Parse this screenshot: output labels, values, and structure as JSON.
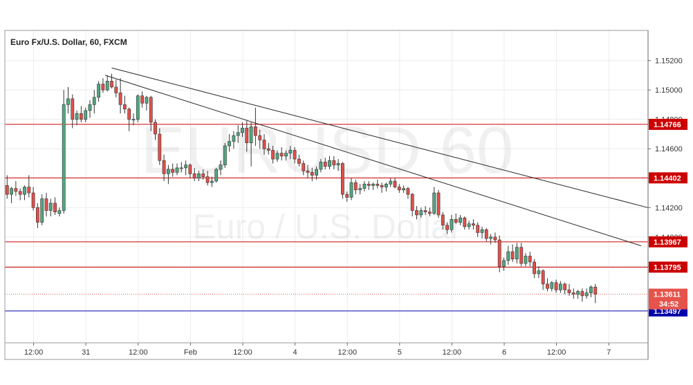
{
  "chart_data": {
    "type": "candlestick",
    "title": "Euro Fx/U.S. Dollar, 60, FXCM",
    "watermark": {
      "symbol": "EURUSD",
      "interval": "60",
      "description": "Euro / U.S. Dollar"
    },
    "y_axis": {
      "ylim": [
        1.1328,
        1.15405
      ],
      "ticks": [
        "1.15200",
        "1.15000",
        "1.14800",
        "1.14600",
        "1.14400",
        "1.14200",
        "1.14000",
        "1.13800"
      ],
      "grid": true
    },
    "x_axis": {
      "ticks": [
        {
          "label": "12:00",
          "bar": 6
        },
        {
          "label": "31",
          "bar": 18
        },
        {
          "label": "12:00",
          "bar": 30
        },
        {
          "label": "Feb",
          "bar": 42
        },
        {
          "label": "12:00",
          "bar": 54
        },
        {
          "label": "4",
          "bar": 66
        },
        {
          "label": "12:00",
          "bar": 78
        },
        {
          "label": "5",
          "bar": 90
        },
        {
          "label": "12:00",
          "bar": 102
        },
        {
          "label": "6",
          "bar": 114
        },
        {
          "label": "12:00",
          "bar": 126
        },
        {
          "label": "7",
          "bar": 138
        }
      ],
      "grid": true
    },
    "horizontal_lines": [
      {
        "value": 1.14766,
        "label": "1.14766",
        "color": "#cc0000"
      },
      {
        "value": 1.14402,
        "label": "1.14402",
        "color": "#cc0000"
      },
      {
        "value": 1.13967,
        "label": "1.13967",
        "color": "#cc0000"
      },
      {
        "value": 1.13795,
        "label": "1.13795",
        "color": "#cc0000"
      },
      {
        "value": 1.13497,
        "label": "1.13497",
        "color": "#0000aa"
      }
    ],
    "current_price": {
      "value": 1.13611,
      "label": "1.13611",
      "countdown": "34:52",
      "color": "#e5534b"
    },
    "trendlines": [
      {
        "x1": 24,
        "y1": 1.1515,
        "x2": 147,
        "y2": 1.142
      },
      {
        "x1": 22.5,
        "y1": 1.151,
        "x2": 145.5,
        "y2": 1.1394
      }
    ],
    "colors": {
      "up": "#53a580",
      "down": "#e0504a",
      "outline": "#333333",
      "grid": "#ececec"
    },
    "candles": [
      [
        1.1435,
        1.1442,
        1.1426,
        1.1429
      ],
      [
        1.1429,
        1.1434,
        1.1423,
        1.1433
      ],
      [
        1.1433,
        1.1438,
        1.1428,
        1.1431
      ],
      [
        1.1431,
        1.1433,
        1.1425,
        1.1429
      ],
      [
        1.1429,
        1.1435,
        1.1425,
        1.1434
      ],
      [
        1.1434,
        1.1442,
        1.1427,
        1.143
      ],
      [
        1.143,
        1.1434,
        1.1418,
        1.142
      ],
      [
        1.142,
        1.1423,
        1.1406,
        1.141
      ],
      [
        1.141,
        1.1429,
        1.1408,
        1.1426
      ],
      [
        1.1426,
        1.143,
        1.1414,
        1.1418
      ],
      [
        1.1418,
        1.1426,
        1.1414,
        1.1423
      ],
      [
        1.1423,
        1.1427,
        1.1415,
        1.1417
      ],
      [
        1.1416,
        1.142,
        1.1414,
        1.1418
      ],
      [
        1.1418,
        1.15,
        1.1416,
        1.149
      ],
      [
        1.149,
        1.1502,
        1.1484,
        1.1494
      ],
      [
        1.1494,
        1.1497,
        1.1474,
        1.148
      ],
      [
        1.148,
        1.1486,
        1.1476,
        1.1484
      ],
      [
        1.1484,
        1.1489,
        1.1478,
        1.148
      ],
      [
        1.148,
        1.1488,
        1.1478,
        1.1486
      ],
      [
        1.1486,
        1.1493,
        1.1481,
        1.149
      ],
      [
        1.149,
        1.15,
        1.1484,
        1.1495
      ],
      [
        1.1495,
        1.1506,
        1.1492,
        1.1504
      ],
      [
        1.1504,
        1.1508,
        1.1498,
        1.15
      ],
      [
        1.15,
        1.151,
        1.1499,
        1.1506
      ],
      [
        1.1506,
        1.1511,
        1.1501,
        1.1502
      ],
      [
        1.1502,
        1.1507,
        1.1495,
        1.1498
      ],
      [
        1.1498,
        1.1508,
        1.1484,
        1.149
      ],
      [
        1.149,
        1.1496,
        1.1484,
        1.1487
      ],
      [
        1.1487,
        1.1488,
        1.1472,
        1.148
      ],
      [
        1.148,
        1.1484,
        1.1476,
        1.148
      ],
      [
        1.148,
        1.1497,
        1.1478,
        1.1496
      ],
      [
        1.1496,
        1.1499,
        1.1488,
        1.1491
      ],
      [
        1.1491,
        1.1496,
        1.1486,
        1.1495
      ],
      [
        1.1495,
        1.1496,
        1.1472,
        1.1478
      ],
      [
        1.1478,
        1.148,
        1.1466,
        1.147
      ],
      [
        1.147,
        1.1474,
        1.1449,
        1.1452
      ],
      [
        1.1452,
        1.1456,
        1.1438,
        1.1443
      ],
      [
        1.1443,
        1.1449,
        1.1436,
        1.1446
      ],
      [
        1.1446,
        1.145,
        1.1441,
        1.1444
      ],
      [
        1.1444,
        1.145,
        1.1442,
        1.1447
      ],
      [
        1.1447,
        1.1451,
        1.1444,
        1.1447
      ],
      [
        1.1447,
        1.1452,
        1.1442,
        1.1449
      ],
      [
        1.1449,
        1.145,
        1.144,
        1.1443
      ],
      [
        1.1443,
        1.1447,
        1.1438,
        1.144
      ],
      [
        1.144,
        1.1445,
        1.1438,
        1.1443
      ],
      [
        1.1443,
        1.1446,
        1.1439,
        1.1441
      ],
      [
        1.1441,
        1.1445,
        1.1435,
        1.1437
      ],
      [
        1.1437,
        1.1441,
        1.1434,
        1.1438
      ],
      [
        1.1438,
        1.1447,
        1.1437,
        1.1446
      ],
      [
        1.1446,
        1.1452,
        1.1442,
        1.1449
      ],
      [
        1.1449,
        1.1464,
        1.1447,
        1.1462
      ],
      [
        1.1462,
        1.147,
        1.1458,
        1.1465
      ],
      [
        1.1465,
        1.1472,
        1.146,
        1.1469
      ],
      [
        1.1469,
        1.1476,
        1.1464,
        1.1471
      ],
      [
        1.1471,
        1.1478,
        1.1468,
        1.1474
      ],
      [
        1.1474,
        1.1479,
        1.1458,
        1.1464
      ],
      [
        1.1464,
        1.1478,
        1.1448,
        1.1475
      ],
      [
        1.1475,
        1.1488,
        1.1462,
        1.1469
      ],
      [
        1.1469,
        1.1473,
        1.146,
        1.1466
      ],
      [
        1.1466,
        1.147,
        1.1456,
        1.146
      ],
      [
        1.146,
        1.1464,
        1.1456,
        1.1459
      ],
      [
        1.1459,
        1.1462,
        1.145,
        1.1453
      ],
      [
        1.1453,
        1.1459,
        1.1451,
        1.1457
      ],
      [
        1.1457,
        1.1461,
        1.1452,
        1.1455
      ],
      [
        1.1455,
        1.1459,
        1.1452,
        1.1457
      ],
      [
        1.1457,
        1.1462,
        1.1453,
        1.1459
      ],
      [
        1.1459,
        1.1461,
        1.145,
        1.1453
      ],
      [
        1.1453,
        1.1456,
        1.1448,
        1.145
      ],
      [
        1.145,
        1.1452,
        1.1442,
        1.1445
      ],
      [
        1.1445,
        1.1449,
        1.144,
        1.1444
      ],
      [
        1.1444,
        1.1447,
        1.1438,
        1.1442
      ],
      [
        1.1442,
        1.1448,
        1.1439,
        1.1446
      ],
      [
        1.1446,
        1.1453,
        1.1444,
        1.1451
      ],
      [
        1.1451,
        1.1454,
        1.1446,
        1.1448
      ],
      [
        1.1448,
        1.1455,
        1.1446,
        1.1452
      ],
      [
        1.1452,
        1.1455,
        1.1446,
        1.1449
      ],
      [
        1.1449,
        1.1453,
        1.1445,
        1.145
      ],
      [
        1.145,
        1.1451,
        1.1426,
        1.1429
      ],
      [
        1.1429,
        1.1431,
        1.1424,
        1.1427
      ],
      [
        1.1427,
        1.144,
        1.1425,
        1.1437
      ],
      [
        1.1437,
        1.1439,
        1.1429,
        1.1432
      ],
      [
        1.1432,
        1.1436,
        1.1429,
        1.1433
      ],
      [
        1.1433,
        1.1438,
        1.1431,
        1.1436
      ],
      [
        1.1436,
        1.1438,
        1.1432,
        1.1435
      ],
      [
        1.1435,
        1.1437,
        1.1432,
        1.1436
      ],
      [
        1.1436,
        1.1439,
        1.1433,
        1.1435
      ],
      [
        1.1435,
        1.1437,
        1.143,
        1.1434
      ],
      [
        1.1434,
        1.1437,
        1.1431,
        1.1436
      ],
      [
        1.1436,
        1.144,
        1.1434,
        1.1438
      ],
      [
        1.1438,
        1.144,
        1.1433,
        1.1434
      ],
      [
        1.1434,
        1.1436,
        1.143,
        1.1432
      ],
      [
        1.1432,
        1.1435,
        1.143,
        1.1433
      ],
      [
        1.1433,
        1.1434,
        1.1426,
        1.1429
      ],
      [
        1.1429,
        1.143,
        1.1414,
        1.1418
      ],
      [
        1.1418,
        1.1421,
        1.1412,
        1.1415
      ],
      [
        1.1415,
        1.142,
        1.1413,
        1.1418
      ],
      [
        1.1418,
        1.1421,
        1.1415,
        1.1417
      ],
      [
        1.1417,
        1.142,
        1.1414,
        1.1416
      ],
      [
        1.1416,
        1.1434,
        1.1415,
        1.143
      ],
      [
        1.143,
        1.1432,
        1.1413,
        1.1415
      ],
      [
        1.1415,
        1.1417,
        1.1405,
        1.1408
      ],
      [
        1.1408,
        1.141,
        1.1402,
        1.1405
      ],
      [
        1.1405,
        1.1415,
        1.1403,
        1.1412
      ],
      [
        1.1412,
        1.1416,
        1.1409,
        1.141
      ],
      [
        1.141,
        1.1415,
        1.1408,
        1.1413
      ],
      [
        1.1413,
        1.1414,
        1.1405,
        1.1407
      ],
      [
        1.1407,
        1.1411,
        1.1405,
        1.1409
      ],
      [
        1.1409,
        1.1412,
        1.1405,
        1.1408
      ],
      [
        1.1408,
        1.141,
        1.14,
        1.1403
      ],
      [
        1.1403,
        1.1407,
        1.1399,
        1.1405
      ],
      [
        1.1405,
        1.1406,
        1.1397,
        1.1399
      ],
      [
        1.1399,
        1.1402,
        1.1395,
        1.14
      ],
      [
        1.14,
        1.1403,
        1.1396,
        1.1398
      ],
      [
        1.1398,
        1.1401,
        1.1376,
        1.138
      ],
      [
        1.138,
        1.1386,
        1.1377,
        1.1384
      ],
      [
        1.1384,
        1.1394,
        1.1381,
        1.139
      ],
      [
        1.139,
        1.1395,
        1.1383,
        1.1385
      ],
      [
        1.1385,
        1.1396,
        1.1382,
        1.1393
      ],
      [
        1.1393,
        1.1396,
        1.138,
        1.1382
      ],
      [
        1.1382,
        1.1389,
        1.138,
        1.1387
      ],
      [
        1.1387,
        1.139,
        1.138,
        1.1383
      ],
      [
        1.1383,
        1.1385,
        1.1372,
        1.1375
      ],
      [
        1.1375,
        1.138,
        1.1372,
        1.1377
      ],
      [
        1.1377,
        1.1378,
        1.1364,
        1.1368
      ],
      [
        1.1368,
        1.1372,
        1.1363,
        1.1365
      ],
      [
        1.1365,
        1.137,
        1.1363,
        1.1369
      ],
      [
        1.1369,
        1.1371,
        1.1362,
        1.1364
      ],
      [
        1.1364,
        1.137,
        1.1362,
        1.1368
      ],
      [
        1.1368,
        1.1369,
        1.1361,
        1.1364
      ],
      [
        1.1364,
        1.1368,
        1.136,
        1.1362
      ],
      [
        1.1362,
        1.1365,
        1.1358,
        1.1361
      ],
      [
        1.1361,
        1.1364,
        1.1358,
        1.1363
      ],
      [
        1.1363,
        1.1365,
        1.1356,
        1.136
      ],
      [
        1.136,
        1.1365,
        1.1358,
        1.1362
      ],
      [
        1.1362,
        1.1367,
        1.1359,
        1.1366
      ],
      [
        1.1366,
        1.1368,
        1.1355,
        1.13611
      ]
    ]
  }
}
